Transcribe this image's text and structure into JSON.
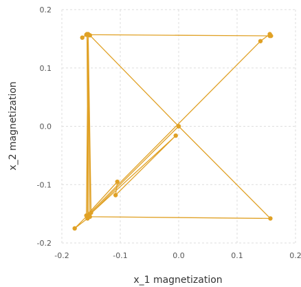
{
  "chart_data": {
    "type": "scatter",
    "xlabel": "x_1 magnetization",
    "ylabel": "x_2 magnetization",
    "xlim": [
      -0.2,
      0.2
    ],
    "ylim": [
      -0.2,
      0.2
    ],
    "x_ticks": [
      -0.2,
      -0.1,
      0.0,
      0.1,
      0.2
    ],
    "y_ticks": [
      -0.2,
      -0.1,
      0.0,
      0.1,
      0.2
    ],
    "x_tick_labels": [
      "-0.2",
      "-0.1",
      "0.0",
      "0.1",
      "0.2"
    ],
    "y_tick_labels": [
      "-0.2",
      "-0.1",
      "0.0",
      "0.1",
      "0.2"
    ],
    "grid": true,
    "series": [
      {
        "color": "#e0a125",
        "mode": "lines+markers",
        "points": [
          [
            -0.165,
            0.152
          ],
          [
            -0.158,
            0.157
          ],
          [
            0.158,
            0.155
          ],
          [
            0.156,
            0.158
          ],
          [
            0.14,
            0.146
          ],
          [
            -0.178,
            -0.175
          ],
          [
            -0.156,
            -0.158
          ],
          [
            -0.155,
            0.158
          ],
          [
            -0.155,
            -0.155
          ],
          [
            -0.157,
            0.158
          ],
          [
            -0.15,
            -0.148
          ],
          [
            -0.155,
            0.157
          ],
          [
            -0.158,
            -0.153
          ],
          [
            -0.105,
            -0.095
          ],
          [
            -0.108,
            -0.118
          ],
          [
            -0.005,
            -0.016
          ],
          [
            -0.153,
            -0.152
          ],
          [
            0.0,
            0.0
          ],
          [
            -0.152,
            0.156
          ],
          [
            0.0,
            0.0
          ],
          [
            0.157,
            -0.158
          ],
          [
            -0.152,
            -0.155
          ],
          [
            -0.155,
            0.157
          ],
          [
            0.156,
            0.155
          ]
        ]
      }
    ]
  }
}
